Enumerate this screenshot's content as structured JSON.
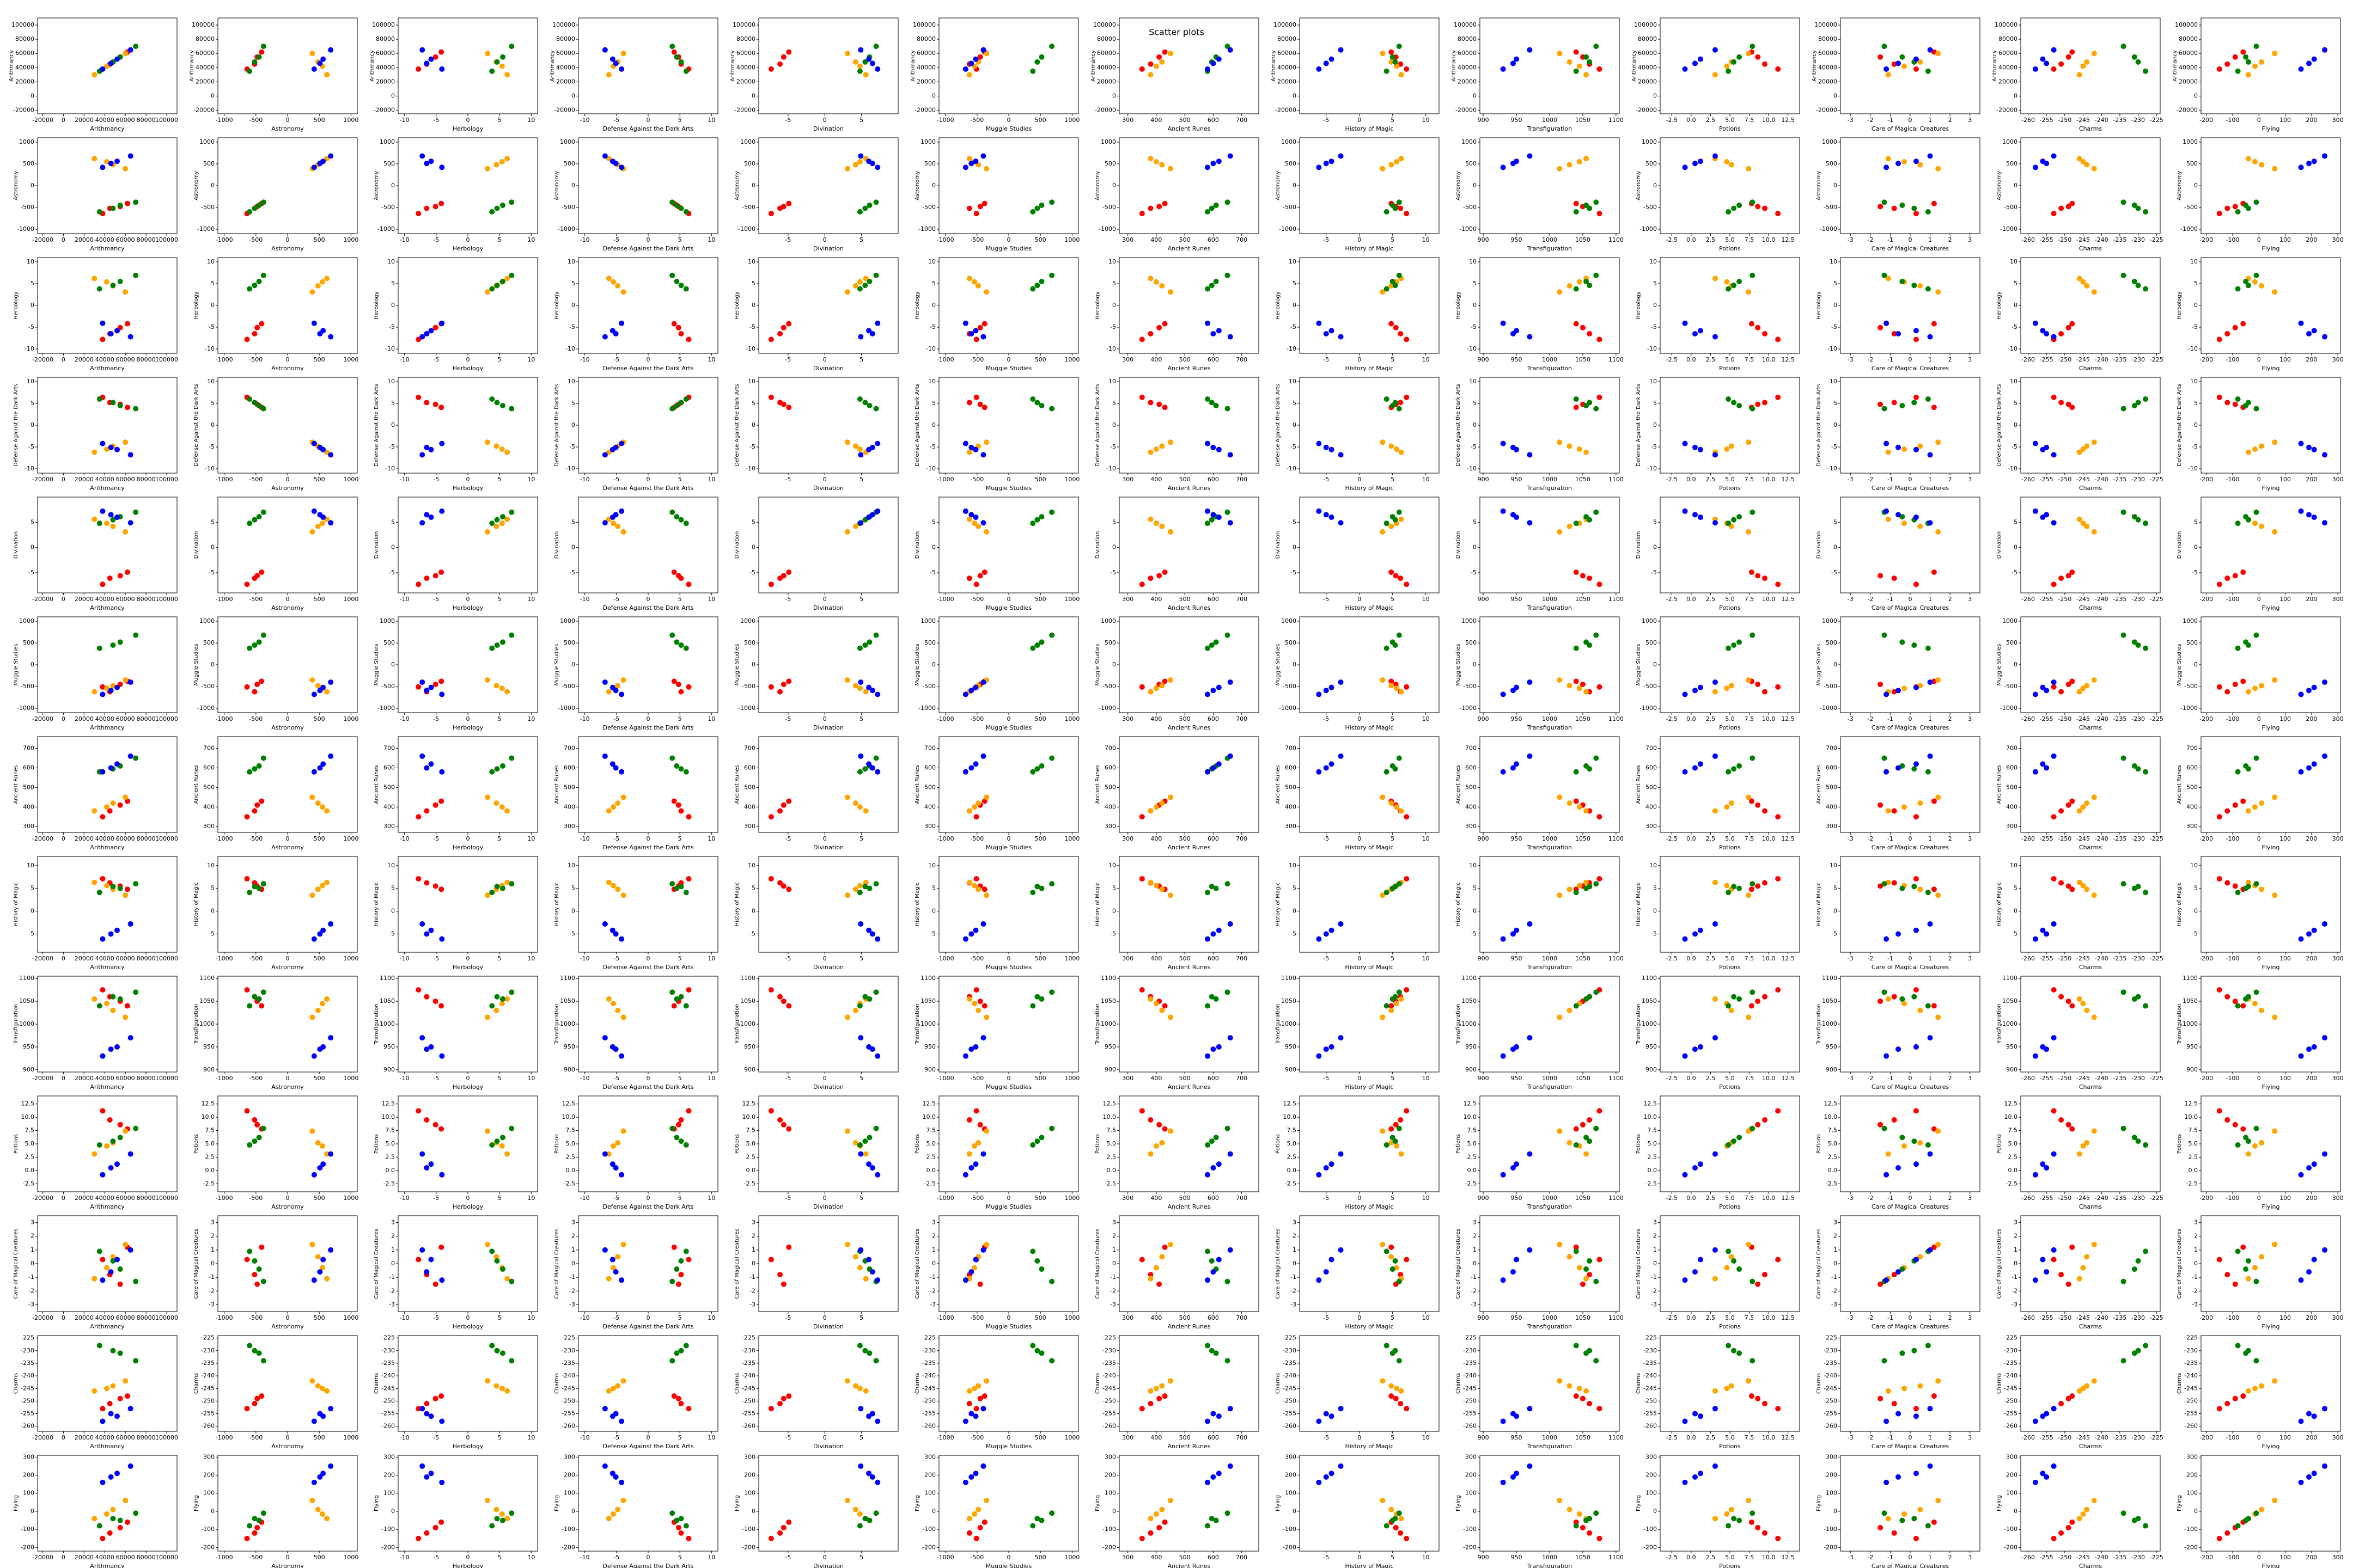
{
  "chart_data": {
    "type": "scatter-matrix",
    "title": "Scatter plots",
    "features": [
      {
        "name": "Arithmancy",
        "lim": [
          -25000,
          110000
        ],
        "ticks": [
          -20000,
          0,
          20000,
          40000,
          60000,
          80000,
          100000
        ]
      },
      {
        "name": "Astronomy",
        "lim": [
          -1100,
          1100
        ],
        "ticks": [
          -1000,
          -500,
          0,
          500,
          1000
        ]
      },
      {
        "name": "Herbology",
        "lim": [
          -11,
          11
        ],
        "ticks": [
          -10,
          -5,
          0,
          5,
          10
        ]
      },
      {
        "name": "Defense Against the Dark Arts",
        "lim": [
          -11,
          11
        ],
        "ticks": [
          -10,
          -5,
          0,
          5,
          10
        ]
      },
      {
        "name": "Divination",
        "lim": [
          -9,
          10
        ],
        "ticks": [
          -5,
          0,
          5
        ]
      },
      {
        "name": "Muggle Studies",
        "lim": [
          -1100,
          1100
        ],
        "ticks": [
          -1000,
          -500,
          0,
          500,
          1000
        ]
      },
      {
        "name": "Ancient Runes",
        "lim": [
          270,
          760
        ],
        "ticks": [
          300,
          400,
          500,
          600,
          700
        ]
      },
      {
        "name": "History of Magic",
        "lim": [
          -9,
          12
        ],
        "ticks": [
          -5,
          0,
          5,
          10
        ]
      },
      {
        "name": "Transfiguration",
        "lim": [
          895,
          1105
        ],
        "ticks": [
          900,
          950,
          1000,
          1050,
          1100
        ]
      },
      {
        "name": "Potions",
        "lim": [
          -4,
          14
        ],
        "ticks": [
          -2.5,
          {
            "value": 0,
            "label": "0.0"
          },
          2.5,
          {
            "value": 5,
            "label": "5.0"
          },
          7.5,
          {
            "value": 10,
            "label": "10.0"
          },
          12.5
        ]
      },
      {
        "name": "Care of Magical Creatures",
        "lim": [
          -3.5,
          3.5
        ],
        "ticks": [
          -3,
          -2,
          -1,
          0,
          1,
          2,
          3
        ]
      },
      {
        "name": "Charms",
        "lim": [
          -262,
          -224
        ],
        "ticks": [
          -260,
          -255,
          -250,
          -245,
          -240,
          -235,
          -230,
          -225
        ]
      },
      {
        "name": "Flying",
        "lim": [
          -220,
          310
        ],
        "ticks": [
          -200,
          -100,
          0,
          100,
          200,
          300
        ]
      }
    ],
    "series": [
      {
        "color": "#ff0000",
        "values": [
          [
            45000,
            62000,
            38000,
            55000
          ],
          [
            -520,
            -410,
            -640,
            -480
          ],
          [
            -6.5,
            -4.2,
            -7.8,
            -5.1
          ],
          [
            5.2,
            4.1,
            6.4,
            4.8
          ],
          [
            -6.1,
            -4.9,
            -7.3,
            -5.6
          ],
          [
            -620,
            -380,
            -510,
            -450
          ],
          [
            380,
            430,
            350,
            410
          ],
          [
            6.2,
            4.8,
            7.1,
            5.5
          ],
          [
            1060,
            1040,
            1075,
            1050
          ],
          [
            9.5,
            7.8,
            11.2,
            8.6
          ],
          [
            -0.8,
            1.2,
            0.3,
            -1.5
          ],
          [
            -251,
            -248,
            -253,
            -249
          ],
          [
            -120,
            -60,
            -150,
            -90
          ]
        ]
      },
      {
        "color": "#ffa500",
        "values": [
          [
            48000,
            30000,
            60000,
            42000
          ],
          [
            480,
            620,
            390,
            550
          ],
          [
            4.5,
            6.2,
            3.1,
            5.4
          ],
          [
            -4.8,
            -6.2,
            -3.9,
            -5.5
          ],
          [
            4.2,
            5.6,
            3.1,
            4.8
          ],
          [
            -480,
            -620,
            -350,
            -540
          ],
          [
            420,
            380,
            450,
            400
          ],
          [
            4.8,
            6.3,
            3.5,
            5.6
          ],
          [
            1030,
            1055,
            1015,
            1045
          ],
          [
            5.2,
            3.1,
            7.4,
            4.6
          ],
          [
            0.5,
            -1.1,
            1.4,
            -0.3
          ],
          [
            -244,
            -246,
            -242,
            -245
          ],
          [
            10,
            -40,
            60,
            -15
          ]
        ]
      },
      {
        "color": "#008000",
        "values": [
          [
            55000,
            35000,
            70000,
            48000
          ],
          [
            -450,
            -600,
            -380,
            -520
          ],
          [
            5.5,
            3.8,
            6.9,
            4.6
          ],
          [
            4.5,
            6.0,
            3.8,
            5.2
          ],
          [
            6.1,
            4.8,
            7.0,
            5.5
          ],
          [
            520,
            380,
            680,
            450
          ],
          [
            610,
            580,
            650,
            595
          ],
          [
            5.0,
            4.1,
            6.0,
            5.4
          ],
          [
            1055,
            1040,
            1070,
            1060
          ],
          [
            6.2,
            4.8,
            7.9,
            5.5
          ],
          [
            -0.4,
            0.9,
            -1.3,
            0.2
          ],
          [
            -231,
            -228,
            -234,
            -230
          ],
          [
            -50,
            -80,
            -10,
            -40
          ]
        ]
      },
      {
        "color": "#0000ff",
        "values": [
          [
            52000,
            38000,
            65000,
            46000
          ],
          [
            560,
            420,
            680,
            510
          ],
          [
            -5.8,
            -4.1,
            -7.2,
            -6.5
          ],
          [
            -5.6,
            -4.2,
            -6.8,
            -5.1
          ],
          [
            6.0,
            7.2,
            4.9,
            6.5
          ],
          [
            -520,
            -680,
            -400,
            -590
          ],
          [
            620,
            580,
            660,
            600
          ],
          [
            -4.2,
            -6.1,
            -2.8,
            -5.0
          ],
          [
            950,
            930,
            970,
            945
          ],
          [
            1.2,
            -0.8,
            3.1,
            0.5
          ],
          [
            0.3,
            -1.2,
            1.0,
            -0.6
          ],
          [
            -256,
            -258,
            -253,
            -255
          ],
          [
            210,
            160,
            250,
            190
          ]
        ]
      }
    ]
  }
}
